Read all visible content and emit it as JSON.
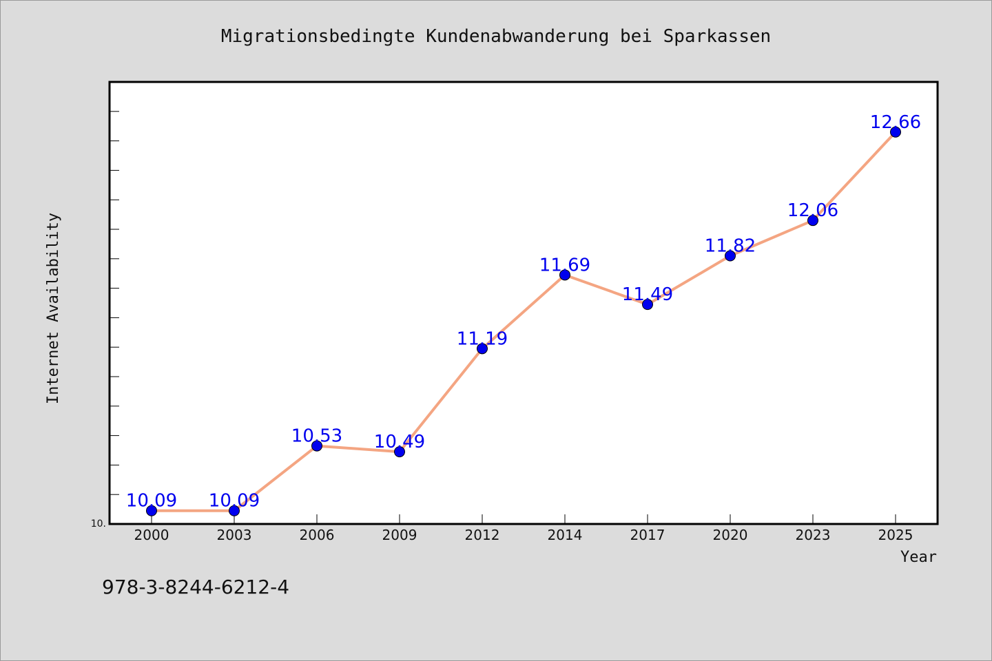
{
  "chart_data": {
    "type": "line",
    "title": "Migrationsbedingte Kundenabwanderung bei Sparkassen",
    "xlabel": "Year",
    "ylabel": "Internet Availability",
    "categories": [
      "2000",
      "2003",
      "2006",
      "2009",
      "2012",
      "2014",
      "2017",
      "2020",
      "2023",
      "2025"
    ],
    "series": [
      {
        "values": [
          10.09,
          10.09,
          10.53,
          10.49,
          11.19,
          11.69,
          11.49,
          11.82,
          12.06,
          12.66
        ]
      }
    ],
    "data_labels": [
      "10.09",
      "10.09",
      "10.53",
      "10.49",
      "11.19",
      "11.69",
      "11.49",
      "11.82",
      "12.06",
      "12.66"
    ],
    "ylim": [
      10.0,
      13.0
    ],
    "y_min_label": "10.",
    "grid": false,
    "legend": "none",
    "colors": {
      "line": "#f4a582",
      "marker": "#0000ee",
      "label": "#0000ee",
      "plot_bg": "#ffffff",
      "page_bg": "#dcdcdc"
    }
  },
  "annotation": "978-3-8244-6212-4"
}
